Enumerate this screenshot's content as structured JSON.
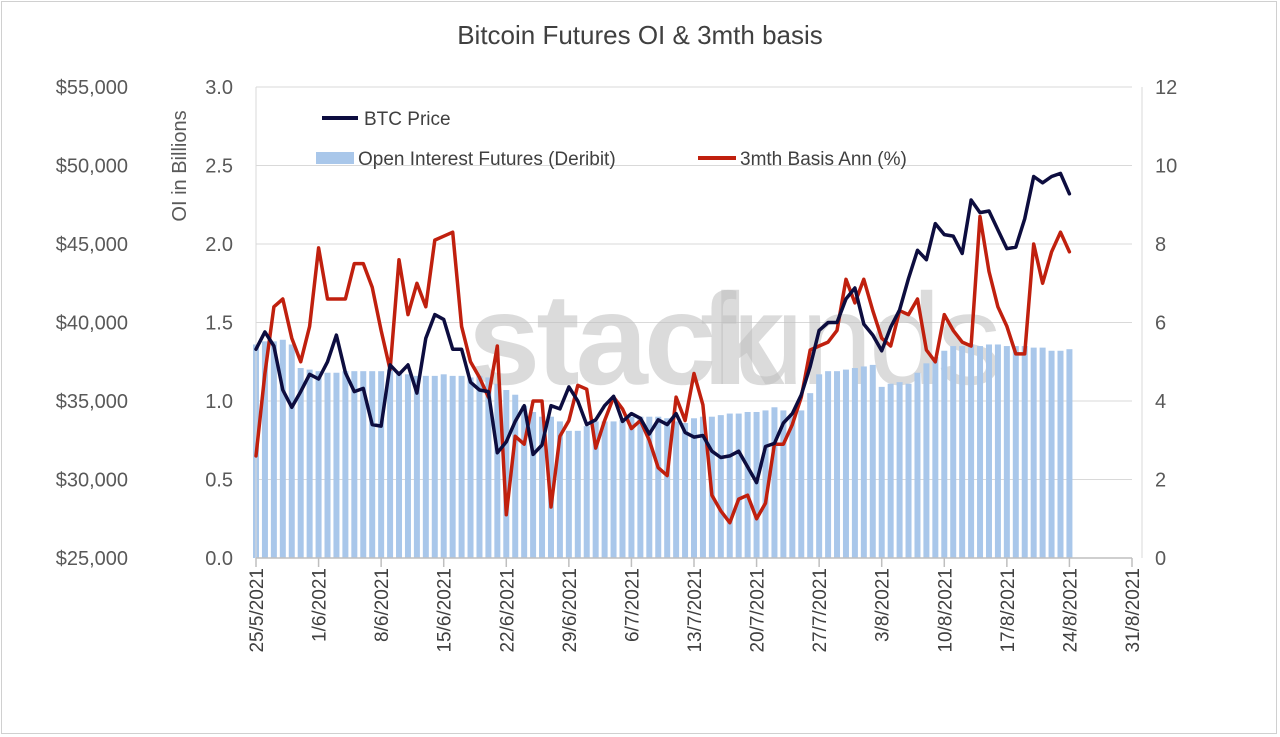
{
  "chart_data": {
    "type": "line",
    "title": "Bitcoin Futures OI & 3mth basis",
    "watermark": {
      "bold": "stack",
      "light": "funds"
    },
    "x_ticks": [
      "25/5/2021",
      "1/6/2021",
      "8/6/2021",
      "15/6/2021",
      "22/6/2021",
      "29/6/2021",
      "6/7/2021",
      "13/7/2021",
      "20/7/2021",
      "27/7/2021",
      "3/8/2021",
      "10/8/2021",
      "17/8/2021",
      "24/8/2021",
      "31/8/2021"
    ],
    "x_range": [
      "2021-05-25",
      "2021-08-31"
    ],
    "axes": {
      "price": {
        "ticks": [
          "$25,000",
          "$30,000",
          "$35,000",
          "$40,000",
          "$45,000",
          "$50,000",
          "$55,000"
        ],
        "min": 25000,
        "max": 55000
      },
      "oi": {
        "label": "OI in Billions",
        "ticks": [
          "0.0",
          "0.5",
          "1.0",
          "1.5",
          "2.0",
          "2.5",
          "3.0"
        ],
        "min": 0,
        "max": 3
      },
      "basis": {
        "ticks": [
          "0",
          "2",
          "4",
          "6",
          "8",
          "10",
          "12"
        ],
        "min": 0,
        "max": 12
      }
    },
    "legend": {
      "placement": "top-left",
      "items": [
        "BTC Price",
        "Open Interest Futures (Deribit)",
        "3mth Basis Ann (%)"
      ]
    },
    "colors": {
      "price": "#0d0d3f",
      "oi": "#a9c7ea",
      "basis": "#c0200e",
      "grid": "#d9d9d9"
    },
    "series": [
      {
        "name": "Open Interest Futures (Deribit)",
        "type": "bar",
        "axis": "oi",
        "x": [
          "2021-05-25",
          "2021-05-26",
          "2021-05-27",
          "2021-05-28",
          "2021-05-29",
          "2021-05-30",
          "2021-05-31",
          "2021-06-01",
          "2021-06-02",
          "2021-06-03",
          "2021-06-04",
          "2021-06-05",
          "2021-06-06",
          "2021-06-07",
          "2021-06-08",
          "2021-06-09",
          "2021-06-10",
          "2021-06-11",
          "2021-06-12",
          "2021-06-13",
          "2021-06-14",
          "2021-06-15",
          "2021-06-16",
          "2021-06-17",
          "2021-06-18",
          "2021-06-19",
          "2021-06-20",
          "2021-06-21",
          "2021-06-22",
          "2021-06-23",
          "2021-06-24",
          "2021-06-25",
          "2021-06-26",
          "2021-06-27",
          "2021-06-28",
          "2021-06-29",
          "2021-06-30",
          "2021-07-01",
          "2021-07-02",
          "2021-07-03",
          "2021-07-04",
          "2021-07-05",
          "2021-07-06",
          "2021-07-07",
          "2021-07-08",
          "2021-07-09",
          "2021-07-10",
          "2021-07-11",
          "2021-07-12",
          "2021-07-13",
          "2021-07-14",
          "2021-07-15",
          "2021-07-16",
          "2021-07-17",
          "2021-07-18",
          "2021-07-19",
          "2021-07-20",
          "2021-07-21",
          "2021-07-22",
          "2021-07-23",
          "2021-07-24",
          "2021-07-25",
          "2021-07-26",
          "2021-07-27",
          "2021-07-28",
          "2021-07-29",
          "2021-07-30",
          "2021-07-31",
          "2021-08-01",
          "2021-08-02",
          "2021-08-03",
          "2021-08-04",
          "2021-08-05",
          "2021-08-06",
          "2021-08-07",
          "2021-08-08",
          "2021-08-09",
          "2021-08-10",
          "2021-08-11",
          "2021-08-12",
          "2021-08-13",
          "2021-08-14",
          "2021-08-15",
          "2021-08-16",
          "2021-08-17",
          "2021-08-18",
          "2021-08-19",
          "2021-08-20",
          "2021-08-21",
          "2021-08-22",
          "2021-08-23",
          "2021-08-24"
        ],
        "values": [
          1.36,
          1.38,
          1.38,
          1.39,
          1.36,
          1.21,
          1.2,
          1.19,
          1.18,
          1.18,
          1.19,
          1.19,
          1.19,
          1.19,
          1.19,
          1.2,
          1.19,
          1.17,
          1.16,
          1.16,
          1.16,
          1.17,
          1.16,
          1.16,
          1.15,
          1.16,
          1.15,
          1.11,
          1.07,
          1.04,
          0.97,
          0.93,
          0.9,
          0.9,
          0.87,
          0.81,
          0.81,
          0.84,
          0.87,
          0.87,
          0.87,
          0.88,
          0.9,
          0.9,
          0.9,
          0.9,
          0.89,
          0.87,
          0.86,
          0.89,
          0.9,
          0.9,
          0.91,
          0.92,
          0.92,
          0.93,
          0.93,
          0.94,
          0.96,
          0.94,
          0.92,
          0.94,
          1.05,
          1.17,
          1.19,
          1.19,
          1.2,
          1.21,
          1.22,
          1.23,
          1.09,
          1.11,
          1.12,
          1.11,
          1.18,
          1.24,
          1.28,
          1.32,
          1.35,
          1.35,
          1.36,
          1.35,
          1.36,
          1.36,
          1.35,
          1.35,
          1.35,
          1.34,
          1.34,
          1.32,
          1.32,
          1.33
        ]
      },
      {
        "name": "3mth Basis Ann (%)",
        "type": "line",
        "axis": "basis",
        "x": [
          "2021-05-25",
          "2021-05-26",
          "2021-05-27",
          "2021-05-28",
          "2021-05-29",
          "2021-05-30",
          "2021-05-31",
          "2021-06-01",
          "2021-06-02",
          "2021-06-03",
          "2021-06-04",
          "2021-06-05",
          "2021-06-06",
          "2021-06-07",
          "2021-06-08",
          "2021-06-09",
          "2021-06-10",
          "2021-06-11",
          "2021-06-12",
          "2021-06-13",
          "2021-06-14",
          "2021-06-15",
          "2021-06-16",
          "2021-06-17",
          "2021-06-18",
          "2021-06-19",
          "2021-06-20",
          "2021-06-21",
          "2021-06-22",
          "2021-06-23",
          "2021-06-24",
          "2021-06-25",
          "2021-06-26",
          "2021-06-27",
          "2021-06-28",
          "2021-06-29",
          "2021-06-30",
          "2021-07-01",
          "2021-07-02",
          "2021-07-03",
          "2021-07-04",
          "2021-07-05",
          "2021-07-06",
          "2021-07-07",
          "2021-07-08",
          "2021-07-09",
          "2021-07-10",
          "2021-07-11",
          "2021-07-12",
          "2021-07-13",
          "2021-07-14",
          "2021-07-15",
          "2021-07-16",
          "2021-07-17",
          "2021-07-18",
          "2021-07-19",
          "2021-07-20",
          "2021-07-21",
          "2021-07-22",
          "2021-07-23",
          "2021-07-24",
          "2021-07-25",
          "2021-07-26",
          "2021-07-27",
          "2021-07-28",
          "2021-07-29",
          "2021-07-30",
          "2021-07-31",
          "2021-08-01",
          "2021-08-02",
          "2021-08-03",
          "2021-08-04",
          "2021-08-05",
          "2021-08-06",
          "2021-08-07",
          "2021-08-08",
          "2021-08-09",
          "2021-08-10",
          "2021-08-11",
          "2021-08-12",
          "2021-08-13",
          "2021-08-14",
          "2021-08-15",
          "2021-08-16",
          "2021-08-17",
          "2021-08-18",
          "2021-08-19",
          "2021-08-20",
          "2021-08-21",
          "2021-08-22",
          "2021-08-23",
          "2021-08-24"
        ],
        "values": [
          2.6,
          4.7,
          6.4,
          6.6,
          5.6,
          5.0,
          5.9,
          7.9,
          6.6,
          6.6,
          6.6,
          7.5,
          7.5,
          6.9,
          5.8,
          4.8,
          7.6,
          6.2,
          7.0,
          6.4,
          8.1,
          8.2,
          8.3,
          5.9,
          5.0,
          4.6,
          4.1,
          5.4,
          1.1,
          3.1,
          2.9,
          4.0,
          4.0,
          1.3,
          3.1,
          3.5,
          4.4,
          4.3,
          2.8,
          3.5,
          4.1,
          3.8,
          3.3,
          3.5,
          3.0,
          2.3,
          2.1,
          4.1,
          3.5,
          4.7,
          3.9,
          1.6,
          1.2,
          0.9,
          1.5,
          1.6,
          1.0,
          1.4,
          2.9,
          2.9,
          3.4,
          4.1,
          5.3,
          5.4,
          5.5,
          5.8,
          7.1,
          6.5,
          7.1,
          6.3,
          5.6,
          5.4,
          6.3,
          6.2,
          6.6,
          5.3,
          5.0,
          6.2,
          5.8,
          5.5,
          5.4,
          8.7,
          7.3,
          6.4,
          5.9,
          5.2,
          5.2,
          8.0,
          7.0,
          7.8,
          8.3,
          7.8
        ]
      },
      {
        "name": "BTC Price",
        "type": "line",
        "axis": "price",
        "x": [
          "2021-05-25",
          "2021-05-26",
          "2021-05-27",
          "2021-05-28",
          "2021-05-29",
          "2021-05-30",
          "2021-05-31",
          "2021-06-01",
          "2021-06-02",
          "2021-06-03",
          "2021-06-04",
          "2021-06-05",
          "2021-06-06",
          "2021-06-07",
          "2021-06-08",
          "2021-06-09",
          "2021-06-10",
          "2021-06-11",
          "2021-06-12",
          "2021-06-13",
          "2021-06-14",
          "2021-06-15",
          "2021-06-16",
          "2021-06-17",
          "2021-06-18",
          "2021-06-19",
          "2021-06-20",
          "2021-06-21",
          "2021-06-22",
          "2021-06-23",
          "2021-06-24",
          "2021-06-25",
          "2021-06-26",
          "2021-06-27",
          "2021-06-28",
          "2021-06-29",
          "2021-06-30",
          "2021-07-01",
          "2021-07-02",
          "2021-07-03",
          "2021-07-04",
          "2021-07-05",
          "2021-07-06",
          "2021-07-07",
          "2021-07-08",
          "2021-07-09",
          "2021-07-10",
          "2021-07-11",
          "2021-07-12",
          "2021-07-13",
          "2021-07-14",
          "2021-07-15",
          "2021-07-16",
          "2021-07-17",
          "2021-07-18",
          "2021-07-19",
          "2021-07-20",
          "2021-07-21",
          "2021-07-22",
          "2021-07-23",
          "2021-07-24",
          "2021-07-25",
          "2021-07-26",
          "2021-07-27",
          "2021-07-28",
          "2021-07-29",
          "2021-07-30",
          "2021-07-31",
          "2021-08-01",
          "2021-08-02",
          "2021-08-03",
          "2021-08-04",
          "2021-08-05",
          "2021-08-06",
          "2021-08-07",
          "2021-08-08",
          "2021-08-09",
          "2021-08-10",
          "2021-08-11",
          "2021-08-12",
          "2021-08-13",
          "2021-08-14",
          "2021-08-15",
          "2021-08-16",
          "2021-08-17",
          "2021-08-18",
          "2021-08-19",
          "2021-08-20",
          "2021-08-21",
          "2021-08-22",
          "2021-08-23",
          "2021-08-24"
        ],
        "values": [
          38300,
          39400,
          38500,
          35700,
          34600,
          35600,
          36700,
          36400,
          37500,
          39200,
          36800,
          35600,
          35800,
          33500,
          33400,
          37300,
          36700,
          37300,
          35500,
          39000,
          40500,
          40200,
          38300,
          38300,
          36200,
          35700,
          35600,
          31700,
          32400,
          33700,
          34700,
          31600,
          32200,
          34700,
          34500,
          35900,
          35000,
          33500,
          33800,
          34700,
          35300,
          33700,
          34200,
          33900,
          32900,
          33800,
          33500,
          34200,
          33000,
          32700,
          32800,
          31800,
          31400,
          31500,
          31800,
          30800,
          29800,
          32100,
          32300,
          33600,
          34200,
          35400,
          37200,
          39500,
          40000,
          40000,
          41500,
          42200,
          39900,
          39200,
          38200,
          39700,
          40800,
          42800,
          44600,
          44000,
          46300,
          45600,
          45500,
          44400,
          47800,
          47000,
          47100,
          45900,
          44700,
          44800,
          46600,
          49300,
          48900,
          49300,
          49500,
          48200
        ]
      }
    ]
  }
}
